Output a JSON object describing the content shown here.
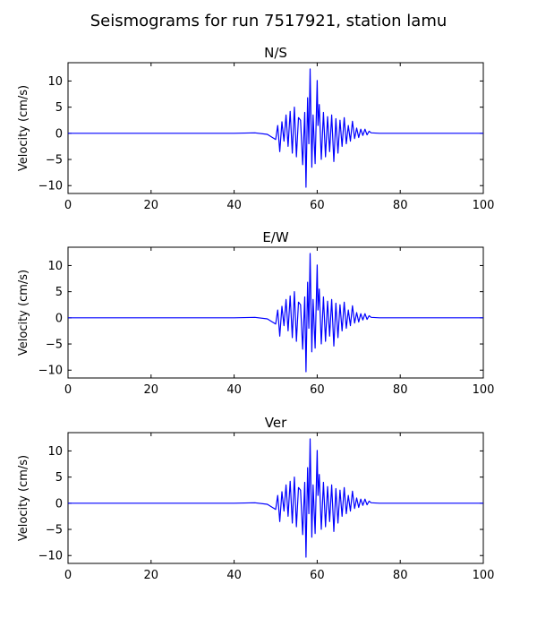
{
  "figure": {
    "title": "Seismograms for run 7517921, station lamu"
  },
  "chart_data": [
    {
      "type": "line",
      "title": "N/S",
      "xlabel": "",
      "ylabel": "Velocity (cm/s)",
      "xlim": [
        0,
        100
      ],
      "ylim": [
        -11.5,
        13.5
      ],
      "xticks": [
        0,
        20,
        40,
        60,
        80,
        100
      ],
      "yticks": [
        -10,
        -5,
        0,
        5,
        10
      ],
      "series": [
        {
          "color": "#0000ff",
          "x": [
            0,
            10,
            20,
            30,
            40,
            45,
            48,
            50,
            50.5,
            51,
            51.5,
            52,
            52.5,
            53,
            53.5,
            54,
            54.5,
            55,
            55.5,
            56,
            56.5,
            57,
            57.3,
            57.7,
            58,
            58.3,
            58.7,
            59,
            59.5,
            60,
            60.2,
            60.5,
            61,
            61.5,
            62,
            62.5,
            63,
            63.5,
            64,
            64.5,
            65,
            65.5,
            66,
            66.5,
            67,
            67.5,
            68,
            68.5,
            69,
            69.5,
            70,
            70.5,
            71,
            71.5,
            72,
            72.5,
            73,
            75,
            80,
            85,
            90,
            95,
            100
          ],
          "y": [
            0,
            0,
            0,
            0,
            0,
            0.1,
            -0.2,
            -1.2,
            1.5,
            -3.5,
            2.2,
            -1.5,
            3.5,
            -2.5,
            4.2,
            -3.8,
            5.0,
            -4.5,
            3.0,
            2.5,
            -6.0,
            4.0,
            -10.3,
            6.8,
            -2.0,
            12.3,
            -6.5,
            3.5,
            -5.8,
            10.1,
            1.5,
            5.5,
            -5.0,
            4.0,
            -4.5,
            3.2,
            -3.5,
            3.5,
            -5.4,
            2.8,
            -3.8,
            2.5,
            -2.5,
            3.0,
            -2.0,
            1.5,
            -1.5,
            2.3,
            -1.0,
            1.0,
            -0.8,
            0.8,
            -0.4,
            0.8,
            -0.3,
            0.4,
            0.1,
            0,
            0,
            0,
            0,
            0,
            0
          ]
        }
      ]
    },
    {
      "type": "line",
      "title": "E/W",
      "xlabel": "",
      "ylabel": "Velocity (cm/s)",
      "xlim": [
        0,
        100
      ],
      "ylim": [
        -11.5,
        13.5
      ],
      "xticks": [
        0,
        20,
        40,
        60,
        80,
        100
      ],
      "yticks": [
        -10,
        -5,
        0,
        5,
        10
      ],
      "series": [
        {
          "color": "#0000ff",
          "x": [
            0,
            10,
            20,
            30,
            40,
            45,
            48,
            50,
            50.5,
            51,
            51.5,
            52,
            52.5,
            53,
            53.5,
            54,
            54.5,
            55,
            55.5,
            56,
            56.5,
            57,
            57.3,
            57.7,
            58,
            58.3,
            58.7,
            59,
            59.5,
            60,
            60.2,
            60.5,
            61,
            61.5,
            62,
            62.5,
            63,
            63.5,
            64,
            64.5,
            65,
            65.5,
            66,
            66.5,
            67,
            67.5,
            68,
            68.5,
            69,
            69.5,
            70,
            70.5,
            71,
            71.5,
            72,
            72.5,
            73,
            75,
            80,
            85,
            90,
            95,
            100
          ],
          "y": [
            0,
            0,
            0,
            0,
            0,
            0.1,
            -0.2,
            -1.2,
            1.5,
            -3.5,
            2.2,
            -1.5,
            3.5,
            -2.5,
            4.2,
            -3.8,
            5.0,
            -4.5,
            3.0,
            2.5,
            -6.0,
            4.0,
            -10.3,
            6.8,
            -2.0,
            12.3,
            -6.5,
            3.5,
            -5.8,
            10.1,
            1.5,
            5.5,
            -5.0,
            4.0,
            -4.5,
            3.2,
            -3.5,
            3.5,
            -5.4,
            2.8,
            -3.8,
            2.5,
            -2.5,
            3.0,
            -2.0,
            1.5,
            -1.5,
            2.3,
            -1.0,
            1.0,
            -0.8,
            0.8,
            -0.4,
            0.8,
            -0.3,
            0.4,
            0.1,
            0,
            0,
            0,
            0,
            0,
            0
          ]
        }
      ]
    },
    {
      "type": "line",
      "title": "Ver",
      "xlabel": "",
      "ylabel": "Velocity (cm/s)",
      "xlim": [
        0,
        100
      ],
      "ylim": [
        -11.5,
        13.5
      ],
      "xticks": [
        0,
        20,
        40,
        60,
        80,
        100
      ],
      "yticks": [
        -10,
        -5,
        0,
        5,
        10
      ],
      "series": [
        {
          "color": "#0000ff",
          "x": [
            0,
            10,
            20,
            30,
            40,
            45,
            48,
            50,
            50.5,
            51,
            51.5,
            52,
            52.5,
            53,
            53.5,
            54,
            54.5,
            55,
            55.5,
            56,
            56.5,
            57,
            57.3,
            57.7,
            58,
            58.3,
            58.7,
            59,
            59.5,
            60,
            60.2,
            60.5,
            61,
            61.5,
            62,
            62.5,
            63,
            63.5,
            64,
            64.5,
            65,
            65.5,
            66,
            66.5,
            67,
            67.5,
            68,
            68.5,
            69,
            69.5,
            70,
            70.5,
            71,
            71.5,
            72,
            72.5,
            73,
            75,
            80,
            85,
            90,
            95,
            100
          ],
          "y": [
            0,
            0,
            0,
            0,
            0,
            0.1,
            -0.2,
            -1.2,
            1.5,
            -3.5,
            2.2,
            -1.5,
            3.5,
            -2.5,
            4.2,
            -3.8,
            5.0,
            -4.5,
            3.0,
            2.5,
            -6.0,
            4.0,
            -10.3,
            6.8,
            -2.0,
            12.3,
            -6.5,
            3.5,
            -5.8,
            10.1,
            1.5,
            5.5,
            -5.0,
            4.0,
            -4.5,
            3.2,
            -3.5,
            3.5,
            -5.4,
            2.8,
            -3.8,
            2.5,
            -2.5,
            3.0,
            -2.0,
            1.5,
            -1.5,
            2.3,
            -1.0,
            1.0,
            -0.8,
            0.8,
            -0.4,
            0.8,
            -0.3,
            0.4,
            0.1,
            0,
            0,
            0,
            0,
            0,
            0
          ]
        }
      ]
    }
  ]
}
